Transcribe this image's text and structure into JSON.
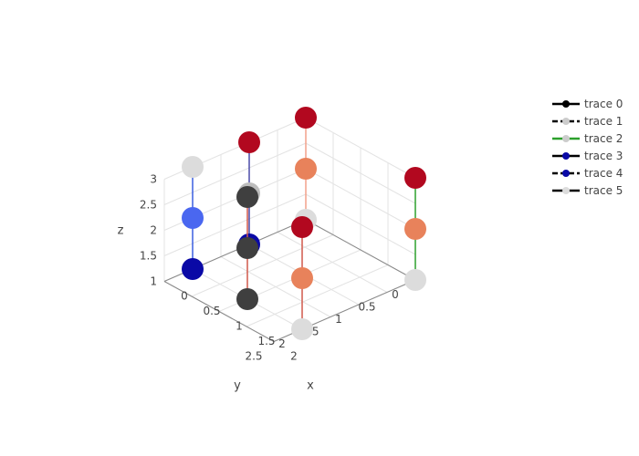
{
  "chart_data": {
    "type": "scatter3d",
    "grid": true,
    "legend_position": "top-right",
    "axes": {
      "x": {
        "title": "x",
        "range": [
          0,
          2
        ],
        "ticks": [
          "0",
          "0.5",
          "1",
          "1.5",
          "2"
        ]
      },
      "y": {
        "title": "y",
        "range": [
          0,
          2.5
        ],
        "ticks": [
          "0",
          "0.5",
          "1",
          "1.5",
          "2",
          "2.5"
        ]
      },
      "z": {
        "title": "z",
        "range": [
          1,
          3
        ],
        "ticks": [
          "1",
          "1.5",
          "2",
          "2.5",
          "3"
        ]
      }
    },
    "series": [
      {
        "name": "trace 0",
        "legend_line": "#000000",
        "legend_marker": "#000000",
        "dash": "solid",
        "points": [
          {
            "x": 0,
            "y": 0,
            "z": 1,
            "color": "#dcdcdc"
          },
          {
            "x": 0,
            "y": 0,
            "z": 2,
            "color": "#e8825b"
          },
          {
            "x": 0,
            "y": 0,
            "z": 3,
            "color": "#b2081f"
          }
        ]
      },
      {
        "name": "trace 1",
        "legend_line": "#000000",
        "legend_marker": "#cccccc",
        "dash": "dash",
        "points": [
          {
            "x": 0,
            "y": 1,
            "z": 1,
            "color": "#0a09a6"
          },
          {
            "x": 0,
            "y": 1,
            "z": 2,
            "color": "#bdbdbd"
          },
          {
            "x": 0,
            "y": 1,
            "z": 3,
            "color": "#b2081f"
          }
        ]
      },
      {
        "name": "trace 2",
        "legend_line": "#2ca02c",
        "legend_marker": "#cccccc",
        "dash": "solid",
        "points": [
          {
            "x": 0,
            "y": 2,
            "z": 1,
            "color": "#0a09a6"
          },
          {
            "x": 0,
            "y": 2,
            "z": 2,
            "color": "#4a67f0"
          },
          {
            "x": 0,
            "y": 2,
            "z": 3,
            "color": "#dcdcdc"
          }
        ]
      },
      {
        "name": "trace 3",
        "legend_line": "#000000",
        "legend_marker": "#0a09a6",
        "dash": "solid",
        "points": [
          {
            "x": 1,
            "y": 2,
            "z": 1,
            "color": "#3f3f3f"
          },
          {
            "x": 1,
            "y": 2,
            "z": 2,
            "color": "#3f3f3f"
          },
          {
            "x": 1,
            "y": 2,
            "z": 3,
            "color": "#3f3f3f"
          }
        ]
      },
      {
        "name": "trace 4",
        "legend_line": "#000000",
        "legend_marker": "#0a09a6",
        "dash": "dash",
        "points": [
          {
            "x": 2,
            "y": 2,
            "z": 1,
            "color": "#dcdcdc"
          },
          {
            "x": 2,
            "y": 2,
            "z": 2,
            "color": "#e8825b"
          },
          {
            "x": 2,
            "y": 2,
            "z": 3,
            "color": "#b2081f"
          }
        ]
      },
      {
        "name": "trace 5",
        "legend_line": "#000000",
        "legend_marker": "#dcdcdc",
        "dash": "solid",
        "points": [
          {
            "x": 2,
            "y": 0,
            "z": 1,
            "color": "#dcdcdc"
          },
          {
            "x": 2,
            "y": 0,
            "z": 2,
            "color": "#e8825b"
          },
          {
            "x": 2,
            "y": 0,
            "z": 3,
            "color": "#b2081f"
          }
        ]
      }
    ]
  }
}
